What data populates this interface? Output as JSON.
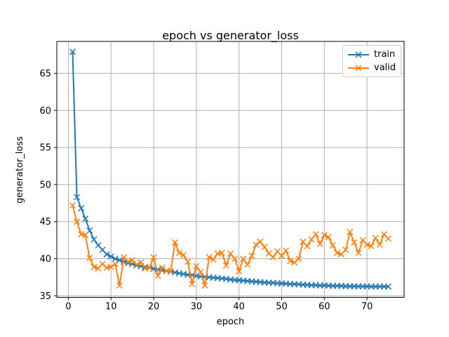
{
  "figure": {
    "background": "#ffffff"
  },
  "chart_data": {
    "type": "line",
    "title": "epoch vs generator_loss",
    "xlabel": "epoch",
    "ylabel": "generator_loss",
    "xlim": [
      -2.7,
      78.7
    ],
    "ylim": [
      34.8,
      69.3
    ],
    "x_ticks": [
      0,
      10,
      20,
      30,
      40,
      50,
      60,
      70
    ],
    "y_ticks": [
      35,
      40,
      45,
      50,
      55,
      60,
      65
    ],
    "grid": true,
    "grid_color": "#b0b0b0",
    "spine_color": "#000000",
    "legend_position": "upper right",
    "marker": "x",
    "x": [
      1,
      2,
      3,
      4,
      5,
      6,
      7,
      8,
      9,
      10,
      11,
      12,
      13,
      14,
      15,
      16,
      17,
      18,
      19,
      20,
      21,
      22,
      23,
      24,
      25,
      26,
      27,
      28,
      29,
      30,
      31,
      32,
      33,
      34,
      35,
      36,
      37,
      38,
      39,
      40,
      41,
      42,
      43,
      44,
      45,
      46,
      47,
      48,
      49,
      50,
      51,
      52,
      53,
      54,
      55,
      56,
      57,
      58,
      59,
      60,
      61,
      62,
      63,
      64,
      65,
      66,
      67,
      68,
      69,
      70,
      71,
      72,
      73,
      74,
      75
    ],
    "series": [
      {
        "name": "train",
        "color": "#1f77b4",
        "values": [
          67.9,
          48.3,
          46.8,
          45.4,
          43.8,
          42.6,
          41.8,
          41.2,
          40.6,
          40.3,
          40.0,
          39.8,
          39.6,
          39.4,
          39.3,
          39.1,
          39.0,
          38.9,
          38.8,
          38.65,
          38.55,
          38.45,
          38.35,
          38.25,
          38.15,
          38.05,
          37.95,
          37.85,
          37.8,
          37.7,
          37.6,
          37.55,
          37.5,
          37.45,
          37.4,
          37.35,
          37.3,
          37.2,
          37.15,
          37.1,
          37.05,
          37.0,
          36.95,
          36.9,
          36.85,
          36.8,
          36.78,
          36.75,
          36.7,
          36.68,
          36.65,
          36.6,
          36.58,
          36.55,
          36.5,
          36.48,
          36.45,
          36.45,
          36.4,
          36.4,
          36.38,
          36.35,
          36.35,
          36.33,
          36.3,
          36.3,
          36.3,
          36.28,
          36.28,
          36.27,
          36.27,
          36.26,
          36.26,
          36.25,
          36.25
        ]
      },
      {
        "name": "valid",
        "color": "#ff7f0e",
        "values": [
          47.2,
          45.0,
          43.3,
          43.2,
          40.1,
          38.9,
          38.7,
          39.3,
          38.8,
          38.9,
          39.3,
          36.4,
          40.2,
          39.6,
          39.8,
          39.2,
          39.5,
          38.7,
          38.8,
          40.2,
          37.7,
          38.8,
          38.4,
          38.3,
          42.2,
          40.8,
          40.5,
          39.6,
          36.6,
          39.0,
          38.2,
          36.4,
          40.2,
          39.9,
          40.7,
          40.8,
          39.1,
          40.7,
          40.0,
          38.3,
          40.0,
          39.2,
          40.4,
          41.9,
          42.3,
          41.6,
          40.7,
          40.2,
          41.0,
          40.4,
          41.1,
          39.7,
          39.5,
          40.0,
          42.3,
          41.7,
          42.6,
          43.3,
          42.0,
          43.2,
          42.9,
          41.8,
          40.8,
          40.6,
          41.2,
          43.6,
          42.2,
          40.8,
          42.5,
          41.9,
          41.7,
          42.8,
          41.9,
          43.3,
          42.7
        ]
      }
    ]
  }
}
